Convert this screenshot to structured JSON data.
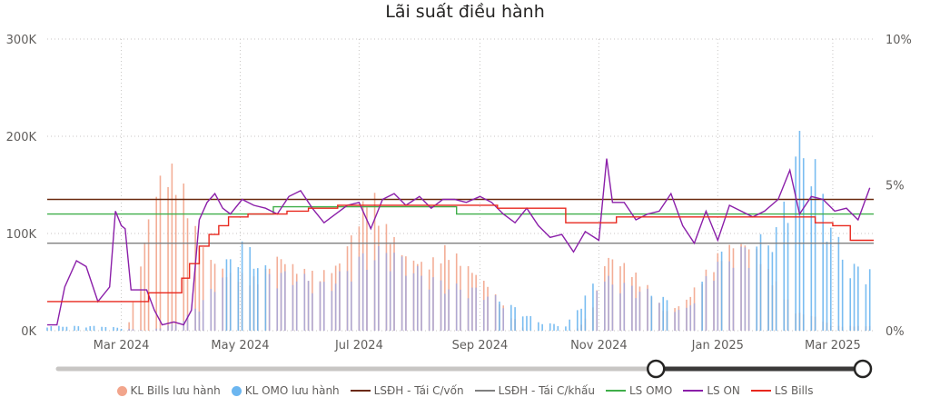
{
  "chart_data": {
    "type": "combo-bar-line",
    "title": "Lãi suất điều hành",
    "x_ticks": [
      "Mar 2024",
      "May 2024",
      "Jul 2024",
      "Sep 2024",
      "Nov 2024",
      "Jan 2025",
      "Mar 2025"
    ],
    "y_left_ticks": [
      "0K",
      "100K",
      "200K",
      "300K"
    ],
    "y_left_range": [
      0,
      300000
    ],
    "y_right_ticks": [
      "0%",
      "5%",
      "10%"
    ],
    "y_right_range": [
      0,
      10
    ],
    "x_range": [
      "2024-01-23",
      "2025-03-22"
    ],
    "grid": true,
    "legend_position": "bottom",
    "colors": {
      "bills": "#f2a58c",
      "omo": "#6cb6f0",
      "overlap": "#a9a8d8",
      "lsdh_tai_c_von": "#6b2a10",
      "lsdh_tai_c_khau": "#7f7f7f",
      "ls_omo": "#3fae49",
      "ls_on": "#8b1fa9",
      "ls_bills": "#e8281e"
    },
    "series": [
      {
        "name": "KL Bills lưu hành",
        "kind": "bar",
        "axis": "left",
        "x": [
          "2024-03-01",
          "2024-03-05",
          "2024-03-10",
          "2024-03-15",
          "2024-03-20",
          "2024-03-25",
          "2024-03-30",
          "2024-04-05",
          "2024-04-10",
          "2024-04-15",
          "2024-04-20",
          "2024-04-25",
          "2024-05-01",
          "2024-05-10",
          "2024-05-20",
          "2024-06-01",
          "2024-06-10",
          "2024-06-20",
          "2024-07-01",
          "2024-07-05",
          "2024-07-10",
          "2024-07-15",
          "2024-07-25",
          "2024-08-05",
          "2024-08-15",
          "2024-08-25",
          "2024-09-05",
          "2024-09-15",
          "2024-09-25",
          "2024-10-10",
          "2024-10-20",
          "2024-10-28",
          "2024-11-05",
          "2024-11-15",
          "2024-11-25",
          "2024-12-05",
          "2024-12-15",
          "2024-12-25",
          "2025-01-01",
          "2025-01-10",
          "2025-01-20",
          "2025-01-28",
          "2025-02-10",
          "2025-02-20",
          "2025-03-01"
        ],
        "values": [
          0,
          10000,
          60000,
          120000,
          160000,
          172000,
          173000,
          130000,
          95000,
          80000,
          70000,
          60000,
          60000,
          55000,
          80000,
          65000,
          60000,
          70000,
          120000,
          150000,
          140000,
          110000,
          80000,
          70000,
          90000,
          70000,
          50000,
          20000,
          0,
          0,
          0,
          20000,
          80000,
          70000,
          50000,
          20000,
          30000,
          60000,
          80000,
          95000,
          90000,
          60000,
          20000,
          15000,
          5000
        ]
      },
      {
        "name": "KL OMO lưu hành",
        "kind": "bar",
        "axis": "left",
        "x": [
          "2024-02-20",
          "2024-03-15",
          "2024-04-01",
          "2024-04-15",
          "2024-05-01",
          "2024-05-15",
          "2024-06-01",
          "2024-06-15",
          "2024-07-01",
          "2024-07-15",
          "2024-08-01",
          "2024-08-15",
          "2024-09-01",
          "2024-09-15",
          "2024-10-01",
          "2024-10-15",
          "2024-11-01",
          "2024-11-15",
          "2024-12-01",
          "2024-12-15",
          "2025-01-01",
          "2025-01-15",
          "2025-02-01",
          "2025-02-10",
          "2025-02-15",
          "2025-02-20",
          "2025-03-01",
          "2025-03-10",
          "2025-03-20"
        ],
        "values": [
          5000,
          0,
          10000,
          40000,
          100000,
          65000,
          60000,
          50000,
          80000,
          90000,
          65000,
          50000,
          45000,
          30000,
          10000,
          5000,
          60000,
          50000,
          40000,
          20000,
          80000,
          90000,
          110000,
          200000,
          215000,
          180000,
          110000,
          70000,
          70000
        ]
      },
      {
        "name": "LSĐH - Tái C/vốn",
        "kind": "line",
        "axis": "right",
        "x": [
          "2024-01-23",
          "2025-03-22"
        ],
        "values": [
          4.5,
          4.5
        ]
      },
      {
        "name": "LSĐH - Tái C/khấu",
        "kind": "line",
        "axis": "right",
        "x": [
          "2024-01-23",
          "2025-03-22"
        ],
        "values": [
          3.0,
          3.0
        ]
      },
      {
        "name": "LS OMO",
        "kind": "line",
        "axis": "right",
        "x": [
          "2024-01-23",
          "2024-05-18",
          "2024-05-18",
          "2024-08-20",
          "2024-08-20",
          "2025-03-22"
        ],
        "values": [
          4.0,
          4.0,
          4.25,
          4.25,
          4.0,
          4.0
        ]
      },
      {
        "name": "LS ON",
        "kind": "line",
        "axis": "right",
        "x": [
          "2024-01-23",
          "2024-01-28",
          "2024-02-01",
          "2024-02-07",
          "2024-02-12",
          "2024-02-18",
          "2024-02-24",
          "2024-02-27",
          "2024-03-01",
          "2024-03-03",
          "2024-03-06",
          "2024-03-10",
          "2024-03-14",
          "2024-03-18",
          "2024-03-22",
          "2024-03-28",
          "2024-04-02",
          "2024-04-06",
          "2024-04-10",
          "2024-04-14",
          "2024-04-18",
          "2024-04-22",
          "2024-04-26",
          "2024-05-02",
          "2024-05-08",
          "2024-05-14",
          "2024-05-20",
          "2024-05-26",
          "2024-06-01",
          "2024-06-07",
          "2024-06-13",
          "2024-06-19",
          "2024-06-25",
          "2024-07-01",
          "2024-07-07",
          "2024-07-13",
          "2024-07-19",
          "2024-07-25",
          "2024-08-01",
          "2024-08-07",
          "2024-08-13",
          "2024-08-19",
          "2024-08-25",
          "2024-09-01",
          "2024-09-07",
          "2024-09-13",
          "2024-09-19",
          "2024-09-25",
          "2024-10-01",
          "2024-10-07",
          "2024-10-13",
          "2024-10-19",
          "2024-10-25",
          "2024-11-01",
          "2024-11-05",
          "2024-11-08",
          "2024-11-14",
          "2024-11-20",
          "2024-11-26",
          "2024-12-02",
          "2024-12-08",
          "2024-12-14",
          "2024-12-20",
          "2024-12-26",
          "2025-01-01",
          "2025-01-07",
          "2025-01-13",
          "2025-01-19",
          "2025-01-25",
          "2025-02-01",
          "2025-02-07",
          "2025-02-12",
          "2025-02-18",
          "2025-02-24",
          "2025-03-02",
          "2025-03-08",
          "2025-03-14",
          "2025-03-20"
        ],
        "values": [
          0.2,
          0.2,
          1.5,
          2.4,
          2.2,
          1.0,
          1.5,
          4.1,
          3.6,
          3.5,
          1.4,
          1.4,
          1.4,
          0.7,
          0.2,
          0.3,
          0.2,
          0.7,
          3.8,
          4.4,
          4.7,
          4.2,
          4.0,
          4.5,
          4.3,
          4.2,
          4.0,
          4.6,
          4.8,
          4.2,
          3.7,
          4.0,
          4.3,
          4.4,
          3.5,
          4.5,
          4.7,
          4.3,
          4.6,
          4.2,
          4.5,
          4.5,
          4.4,
          4.6,
          4.4,
          4.0,
          3.7,
          4.2,
          3.6,
          3.2,
          3.3,
          2.7,
          3.4,
          3.1,
          5.9,
          4.4,
          4.4,
          3.8,
          4.0,
          4.1,
          4.7,
          3.6,
          3.0,
          4.1,
          3.1,
          4.3,
          4.1,
          3.9,
          4.1,
          4.5,
          5.5,
          4.0,
          4.6,
          4.5,
          4.1,
          4.2,
          3.8,
          4.9
        ]
      },
      {
        "name": "LS Bills",
        "kind": "line",
        "axis": "right",
        "x": [
          "2024-01-23",
          "2024-03-15",
          "2024-03-15",
          "2024-04-01",
          "2024-04-05",
          "2024-04-10",
          "2024-04-15",
          "2024-04-20",
          "2024-04-25",
          "2024-05-05",
          "2024-05-15",
          "2024-05-25",
          "2024-06-05",
          "2024-06-20",
          "2024-07-01",
          "2024-07-20",
          "2024-08-20",
          "2024-09-10",
          "2024-10-01",
          "2024-10-15",
          "2024-11-01",
          "2024-11-10",
          "2024-12-01",
          "2025-01-01",
          "2025-01-20",
          "2025-02-10",
          "2025-02-20",
          "2025-03-01",
          "2025-03-10",
          "2025-03-22"
        ],
        "values": [
          1.0,
          1.0,
          1.3,
          1.8,
          2.3,
          2.9,
          3.3,
          3.6,
          3.9,
          4.0,
          4.0,
          4.1,
          4.2,
          4.3,
          4.3,
          4.3,
          4.3,
          4.2,
          4.2,
          3.7,
          3.7,
          3.9,
          3.9,
          3.9,
          3.9,
          3.9,
          3.7,
          3.6,
          3.1,
          3.1
        ]
      }
    ]
  },
  "legend": [
    {
      "label": "KL Bills lưu hành",
      "kind": "dot",
      "color": "#f2a58c"
    },
    {
      "label": "KL OMO lưu hành",
      "kind": "dot",
      "color": "#6cb6f0"
    },
    {
      "label": "LSĐH - Tái C/vốn",
      "kind": "line",
      "color": "#6b2a10"
    },
    {
      "label": "LSĐH - Tái C/khấu",
      "kind": "line",
      "color": "#7f7f7f"
    },
    {
      "label": "LS OMO",
      "kind": "line",
      "color": "#3fae49"
    },
    {
      "label": "LS ON",
      "kind": "line",
      "color": "#8b1fa9"
    },
    {
      "label": "LS Bills",
      "kind": "line",
      "color": "#e8281e"
    }
  ],
  "slider": {
    "range_start": 0.86,
    "range_end": 1.0
  }
}
